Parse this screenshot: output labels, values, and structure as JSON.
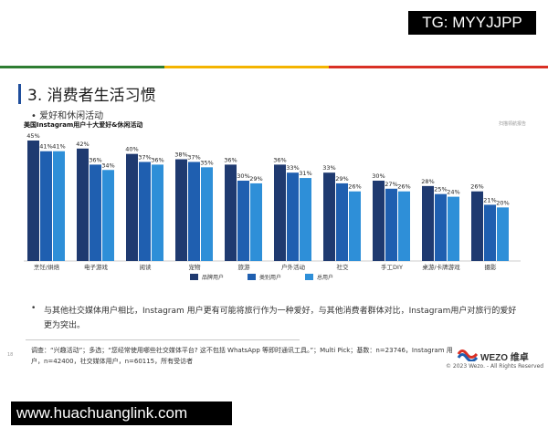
{
  "watermark_top": "TG: MYYJJPP",
  "watermark_bottom": "www.huachuanglink.com",
  "slide": {
    "title": "3. 消费者生活习惯",
    "bullet": "爱好和休闲活动",
    "chart_caption": "美国Instagram用户十大爱好&休闲活动",
    "source_small": "扫描领航报告",
    "note_bullet": "•",
    "note": "与其他社交媒体用户相比，Instagram 用户更有可能将旅行作为一种爱好，与其他消费者群体对比，Instagram用户对旅行的爱好更为突出。",
    "survey": "调查：“兴趣活动”；多选；“您经常使用哪些社交媒体平台? 这不包括 WhatsApp 等即时通讯工具。”；Multi Pick；基数：n=23746，Instagram 用户，n=42400，社交媒体用户，n=60115，所有受访者",
    "page_number": "18",
    "logo_text": "WEZO 维卓",
    "copyright": "© 2023 Wezo. - All Rights Reserved"
  },
  "colors": {
    "series": [
      "#1f3a70",
      "#1f5fb0",
      "#2e8fd8"
    ],
    "title_bar": "#1f4e9c"
  },
  "chart_data": {
    "type": "bar",
    "title": "美国Instagram用户十大爱好&休闲活动",
    "categories": [
      "烹饪/烘焙",
      "电子游戏",
      "阅读",
      "宠物",
      "旅游",
      "户外活动",
      "社交",
      "手工DIY",
      "桌游/卡牌游戏",
      "摄影"
    ],
    "series": [
      {
        "name": "品牌用户",
        "values": [
          45,
          42,
          40,
          38,
          36,
          36,
          33,
          30,
          28,
          26
        ]
      },
      {
        "name": "类别用户",
        "values": [
          41,
          36,
          37,
          37,
          30,
          33,
          29,
          27,
          25,
          21
        ]
      },
      {
        "name": "总用户",
        "values": [
          41,
          34,
          36,
          35,
          29,
          31,
          26,
          26,
          24,
          20
        ]
      }
    ],
    "value_suffix": "%",
    "ylim": [
      0,
      50
    ],
    "legend_position": "bottom",
    "grid": false
  }
}
